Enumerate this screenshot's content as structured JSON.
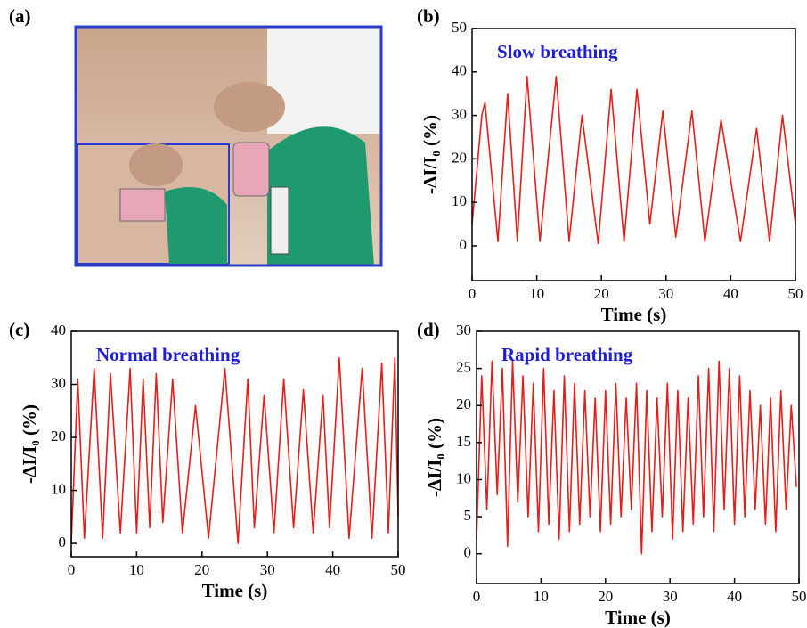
{
  "photo_label": "(a)",
  "chart_data": [
    {
      "type": "line",
      "panel_label": "(b)",
      "annotation": "Slow breathing",
      "xlabel": "Time (s)",
      "ylabel": "-ΔI/I₀ (%)",
      "color": "#e0201b",
      "xlim": [
        0,
        50
      ],
      "xticks": [
        0,
        10,
        20,
        30,
        40,
        50
      ],
      "ylim": [
        -8,
        50
      ],
      "yticks": [
        0,
        10,
        20,
        30,
        40,
        50
      ],
      "x": [
        0,
        1.5,
        2,
        4,
        5.5,
        7,
        8.5,
        10.5,
        13,
        15,
        17,
        19.5,
        21.5,
        23.5,
        25.5,
        27.5,
        29.5,
        31.5,
        34,
        36,
        38.5,
        41.5,
        44,
        46,
        48,
        50
      ],
      "values": [
        5,
        30,
        33,
        1,
        35,
        1,
        39,
        1,
        39,
        1,
        30,
        0.5,
        36,
        1,
        36,
        5,
        31,
        2,
        31,
        1,
        29,
        1,
        27,
        1,
        30,
        5
      ]
    },
    {
      "type": "line",
      "panel_label": "(c)",
      "annotation": "Normal breathing",
      "xlabel": "Time (s)",
      "ylabel": "-ΔI/I₀ (%)",
      "color": "#e0201b",
      "xlim": [
        0,
        50
      ],
      "xticks": [
        0,
        10,
        20,
        30,
        40,
        50
      ],
      "ylim": [
        -2.5,
        40
      ],
      "yticks": [
        0,
        10,
        20,
        30,
        40
      ],
      "x": [
        0,
        1,
        2,
        3.5,
        4.8,
        6,
        7.5,
        9,
        10,
        11,
        12,
        13,
        14,
        15.5,
        17,
        19,
        21,
        23.5,
        25.5,
        27,
        28,
        29.5,
        31,
        32.5,
        34,
        35.5,
        37,
        38.5,
        39.5,
        41,
        42.5,
        44.5,
        46,
        47.5,
        48.5,
        49.5,
        50
      ],
      "values": [
        0,
        31,
        1,
        33,
        1,
        32,
        2,
        33,
        2,
        31,
        3,
        32,
        4,
        31,
        2,
        26,
        1,
        33,
        0,
        31,
        3,
        28,
        2,
        31,
        3,
        29,
        2,
        28,
        3,
        35,
        1,
        33,
        1,
        34,
        2,
        35,
        5
      ]
    },
    {
      "type": "line",
      "panel_label": "(d)",
      "annotation": "Rapid breathing",
      "xlabel": "Time (s)",
      "ylabel": "-ΔI/I₀ (%)",
      "color": "#e0201b",
      "xlim": [
        0,
        50
      ],
      "xticks": [
        0,
        10,
        20,
        30,
        40,
        50
      ],
      "ylim": [
        -4,
        30
      ],
      "yticks": [
        0,
        5,
        10,
        15,
        20,
        25,
        30
      ],
      "x": [
        0,
        0.8,
        1.6,
        2.4,
        3.2,
        4,
        4.8,
        5.6,
        6.4,
        7.2,
        8,
        8.8,
        9.6,
        10.4,
        11.2,
        12,
        12.8,
        13.6,
        14.4,
        15.2,
        16,
        16.8,
        17.6,
        18.4,
        19.2,
        20,
        20.8,
        21.6,
        22.4,
        23.2,
        24,
        24.8,
        25.6,
        26.4,
        27.2,
        28,
        28.8,
        29.6,
        30.4,
        31.2,
        32,
        32.8,
        33.6,
        34.4,
        35.2,
        36,
        36.8,
        37.6,
        38.4,
        39.2,
        40,
        40.8,
        41.6,
        42.4,
        43.2,
        44,
        44.8,
        45.6,
        46.4,
        47.2,
        48,
        48.8,
        49.6
      ],
      "values": [
        2,
        24,
        6,
        26,
        8,
        25,
        1,
        26,
        7,
        24,
        5,
        23,
        3,
        25,
        4,
        22,
        2,
        24,
        3,
        23,
        4,
        22,
        5,
        21,
        3,
        22,
        4,
        23,
        5,
        21,
        6,
        23,
        0,
        22,
        3,
        21,
        5,
        23,
        2,
        22,
        3,
        21,
        4,
        24,
        5,
        25,
        3,
        26,
        6,
        25,
        4,
        24,
        5,
        22,
        6,
        20,
        4,
        21,
        3,
        22,
        6,
        20,
        9
      ]
    }
  ]
}
